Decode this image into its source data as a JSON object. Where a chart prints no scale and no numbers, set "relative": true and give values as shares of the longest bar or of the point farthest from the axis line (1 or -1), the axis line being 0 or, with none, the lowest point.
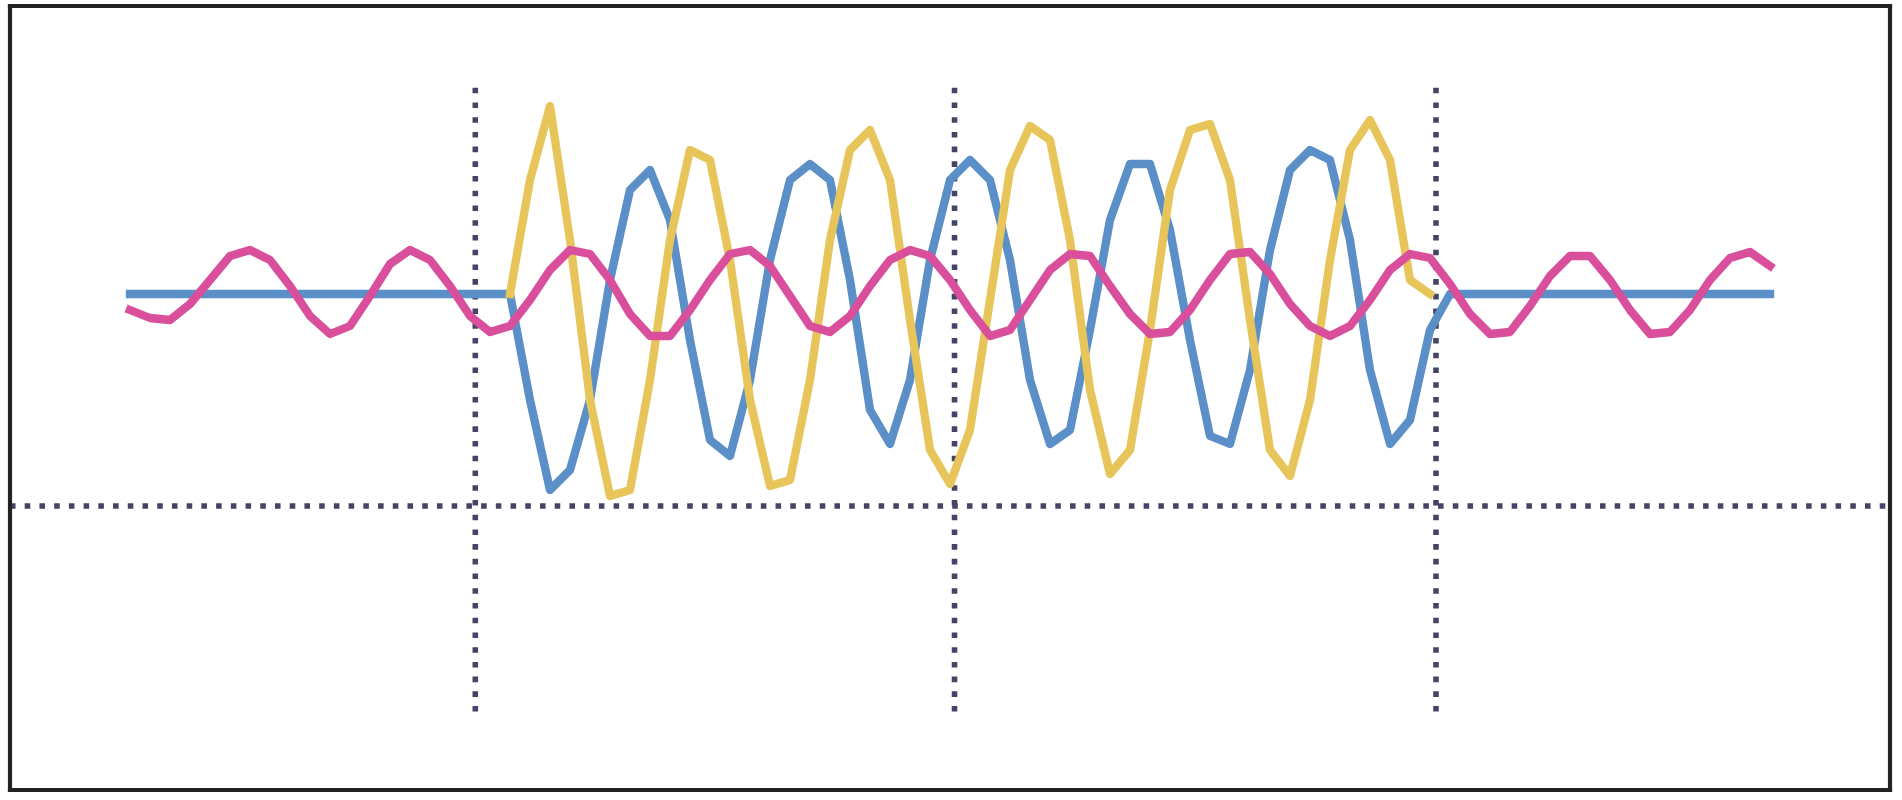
{
  "chart_data": {
    "type": "line",
    "relative": true,
    "line_style": "solid",
    "marker": "none",
    "categories": [
      null,
      null,
      null,
      null,
      null,
      null,
      null,
      null,
      null,
      null,
      null,
      null,
      null,
      null,
      null,
      null,
      null,
      null,
      null,
      null,
      null,
      null,
      null,
      null,
      null,
      null,
      null,
      null,
      null,
      null,
      null,
      null,
      null,
      null,
      null,
      null,
      null,
      null,
      null,
      null,
      null,
      null,
      null,
      null,
      null,
      null,
      null,
      null,
      null,
      null,
      null,
      null,
      null,
      null,
      null,
      null,
      null,
      null,
      null,
      null,
      null,
      null,
      null,
      null,
      null,
      null,
      null,
      null,
      null,
      null,
      null,
      null,
      null,
      null,
      null,
      null,
      null,
      null,
      null,
      null,
      null,
      null,
      null
    ],
    "series": [
      {
        "color": "#5b8fc7",
        "values": [
          0.53,
          0.53,
          0.53,
          0.53,
          0.53,
          0.53,
          0.53,
          0.53,
          0.53,
          0.53,
          0.53,
          0.53,
          0.53,
          0.53,
          0.53,
          0.53,
          0.53,
          0.53,
          0.53,
          0.53,
          0.265,
          0.04,
          0.09,
          0.265,
          0.565,
          0.79,
          0.84,
          0.715,
          0.415,
          0.165,
          0.125,
          0.315,
          0.615,
          0.815,
          0.855,
          0.815,
          0.565,
          0.24,
          0.155,
          0.315,
          0.615,
          0.815,
          0.865,
          0.815,
          0.615,
          0.315,
          0.155,
          0.19,
          0.44,
          0.715,
          0.855,
          0.855,
          0.69,
          0.415,
          0.175,
          0.155,
          0.34,
          0.64,
          0.84,
          0.89,
          0.865,
          0.665,
          0.34,
          0.155,
          0.215,
          0.44,
          0.53,
          0.53,
          0.53,
          0.53,
          0.53,
          0.53,
          0.53,
          0.53,
          0.53,
          0.53,
          0.53,
          0.53,
          0.53,
          0.53,
          0.53,
          0.53,
          0.53
        ]
      },
      {
        "color": "#e8c55a",
        "values": [
          null,
          null,
          null,
          null,
          null,
          null,
          null,
          null,
          null,
          null,
          null,
          null,
          null,
          null,
          null,
          null,
          null,
          null,
          null,
          0.53,
          0.815,
          1.0,
          0.665,
          0.265,
          0.025,
          0.04,
          0.315,
          0.665,
          0.89,
          0.865,
          0.615,
          0.265,
          0.05,
          0.065,
          0.315,
          0.665,
          0.89,
          0.94,
          0.815,
          0.465,
          0.14,
          0.055,
          0.19,
          0.515,
          0.84,
          0.95,
          0.915,
          0.665,
          0.29,
          0.08,
          0.14,
          0.44,
          0.79,
          0.94,
          0.955,
          0.815,
          0.465,
          0.14,
          0.075,
          0.265,
          0.615,
          0.89,
          0.965,
          0.865,
          0.565,
          0.53,
          null,
          null,
          null,
          null,
          null,
          null,
          null,
          null,
          null,
          null,
          null,
          null,
          null,
          null,
          null,
          null,
          null
        ]
      },
      {
        "color": "#d94f9b",
        "values": [
          0.49,
          0.47,
          0.465,
          0.505,
          0.565,
          0.625,
          0.64,
          0.615,
          0.55,
          0.475,
          0.43,
          0.45,
          0.525,
          0.605,
          0.64,
          0.615,
          0.55,
          0.475,
          0.435,
          0.45,
          0.515,
          0.59,
          0.64,
          0.63,
          0.565,
          0.48,
          0.425,
          0.425,
          0.49,
          0.565,
          0.63,
          0.64,
          0.6,
          0.525,
          0.45,
          0.435,
          0.475,
          0.55,
          0.615,
          0.64,
          0.625,
          0.565,
          0.49,
          0.425,
          0.44,
          0.515,
          0.59,
          0.63,
          0.625,
          0.55,
          0.48,
          0.43,
          0.435,
          0.49,
          0.565,
          0.63,
          0.635,
          0.58,
          0.505,
          0.45,
          0.425,
          0.45,
          0.515,
          0.59,
          0.63,
          0.62,
          0.555,
          0.48,
          0.43,
          0.435,
          0.5,
          0.575,
          0.625,
          0.625,
          0.565,
          0.49,
          0.43,
          0.435,
          0.49,
          0.565,
          0.62,
          0.635,
          0.6
        ]
      }
    ]
  }
}
